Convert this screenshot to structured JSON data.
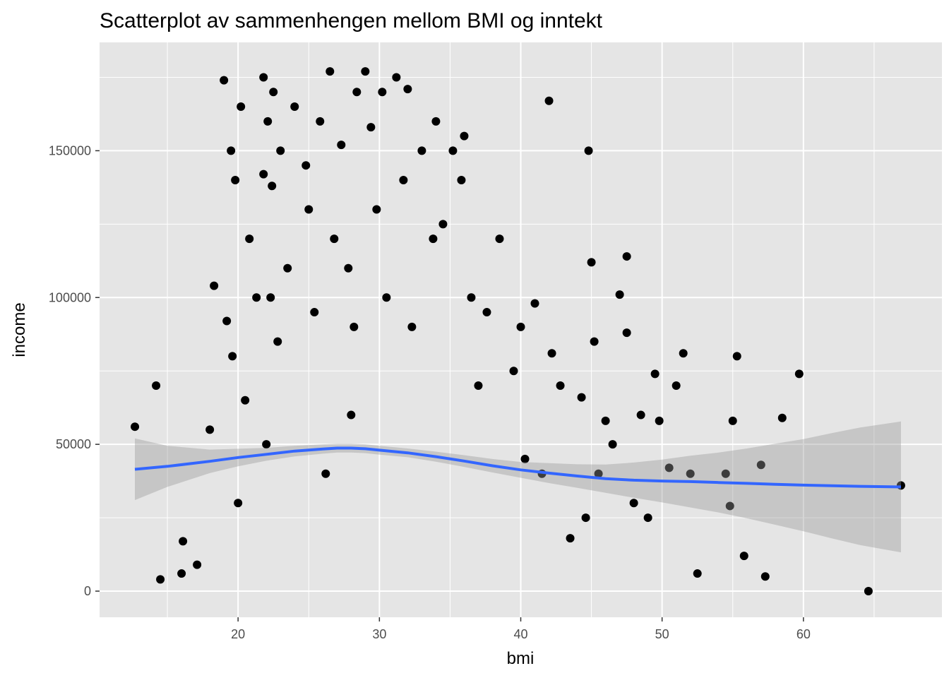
{
  "chart_data": {
    "type": "scatter",
    "title": "Scatterplot av sammenhengen mellom BMI og inntekt",
    "xlabel": "bmi",
    "ylabel": "income",
    "xlim": [
      10.2,
      69.8
    ],
    "ylim": [
      -8900,
      186900
    ],
    "x_ticks": [
      20,
      30,
      40,
      50,
      60
    ],
    "y_ticks": [
      0,
      50000,
      100000,
      150000
    ],
    "x_tick_labels": [
      "20",
      "30",
      "40",
      "50",
      "60"
    ],
    "y_tick_labels": [
      "0",
      "50000",
      "100000",
      "150000"
    ],
    "grid": true,
    "colors": {
      "panel": "#e5e5e5",
      "gridline": "#ffffff",
      "points": "#000000",
      "smooth_line": "#3366ff",
      "confidence_band": "#999999"
    },
    "series": [
      {
        "type": "points",
        "x": [
          12.7,
          14.2,
          14.5,
          16.0,
          16.1,
          17.1,
          18.0,
          18.3,
          19.0,
          19.2,
          19.5,
          19.6,
          19.8,
          20.0,
          20.2,
          20.5,
          20.8,
          21.3,
          21.8,
          21.8,
          22.0,
          22.1,
          22.3,
          22.4,
          22.5,
          22.8,
          23.0,
          23.5,
          24.0,
          24.8,
          25.0,
          25.4,
          25.8,
          26.2,
          26.5,
          26.8,
          27.3,
          27.8,
          28.0,
          28.2,
          28.4,
          29.0,
          29.4,
          29.8,
          30.2,
          30.5,
          31.2,
          31.7,
          32.0,
          32.3,
          33.0,
          33.8,
          34.0,
          34.5,
          35.2,
          35.8,
          36.0,
          36.5,
          37.0,
          37.6,
          38.5,
          39.5,
          40.0,
          40.3,
          41.0,
          41.5,
          42.0,
          42.2,
          42.8,
          43.5,
          44.3,
          44.6,
          44.8,
          45.0,
          45.2,
          45.5,
          46.0,
          46.5,
          47.0,
          47.5,
          47.5,
          48.0,
          48.5,
          49.0,
          49.5,
          49.8,
          50.5,
          51.0,
          51.5,
          52.0,
          52.5,
          54.5,
          54.8,
          55.0,
          55.3,
          55.8,
          57.0,
          57.3,
          58.5,
          59.7,
          64.6,
          66.9
        ],
        "y": [
          56000,
          70000,
          4000,
          6000,
          17000,
          9000,
          55000,
          104000,
          174000,
          92000,
          150000,
          80000,
          140000,
          30000,
          165000,
          65000,
          120000,
          100000,
          175000,
          142000,
          50000,
          160000,
          100000,
          138000,
          170000,
          85000,
          150000,
          110000,
          165000,
          145000,
          130000,
          95000,
          160000,
          40000,
          177000,
          120000,
          152000,
          110000,
          60000,
          90000,
          170000,
          177000,
          158000,
          130000,
          170000,
          100000,
          175000,
          140000,
          171000,
          90000,
          150000,
          120000,
          160000,
          125000,
          150000,
          140000,
          155000,
          100000,
          70000,
          95000,
          120000,
          75000,
          90000,
          45000,
          98000,
          40000,
          167000,
          81000,
          70000,
          18000,
          66000,
          25000,
          150000,
          112000,
          85000,
          40000,
          58000,
          50000,
          101000,
          114000,
          88000,
          30000,
          60000,
          25000,
          74000,
          58000,
          42000,
          70000,
          81000,
          40000,
          6000,
          40000,
          29000,
          58000,
          80000,
          12000,
          43000,
          5000,
          59000,
          74000,
          0,
          36000
        ]
      },
      {
        "type": "loess",
        "x": [
          12.7,
          15,
          18,
          20,
          22,
          24,
          26,
          27,
          28,
          29,
          30,
          32,
          34,
          36,
          38,
          40,
          42,
          44,
          46,
          48,
          50,
          52,
          54,
          56,
          58,
          60,
          62,
          64,
          66.9
        ],
        "y": [
          41500,
          42500,
          44200,
          45500,
          46600,
          47700,
          48400,
          48700,
          48700,
          48500,
          48000,
          47100,
          45800,
          44300,
          42700,
          41300,
          40200,
          39200,
          38300,
          37800,
          37500,
          37300,
          37000,
          36700,
          36400,
          36100,
          35900,
          35700,
          35500
        ],
        "ci_low": [
          31000,
          35500,
          40200,
          42500,
          44400,
          45900,
          46800,
          47200,
          47200,
          47000,
          46500,
          45600,
          44100,
          42300,
          40400,
          38600,
          36800,
          35200,
          33500,
          31800,
          30200,
          28500,
          26800,
          24800,
          22600,
          20400,
          18000,
          15700,
          13200
        ],
        "ci_high": [
          52000,
          49500,
          48200,
          48500,
          48800,
          49500,
          50000,
          50200,
          50200,
          50000,
          49500,
          48600,
          47500,
          46300,
          45000,
          44000,
          43600,
          43200,
          43100,
          43800,
          44800,
          46100,
          47200,
          48600,
          50200,
          51800,
          53800,
          55700,
          57800
        ]
      }
    ]
  }
}
